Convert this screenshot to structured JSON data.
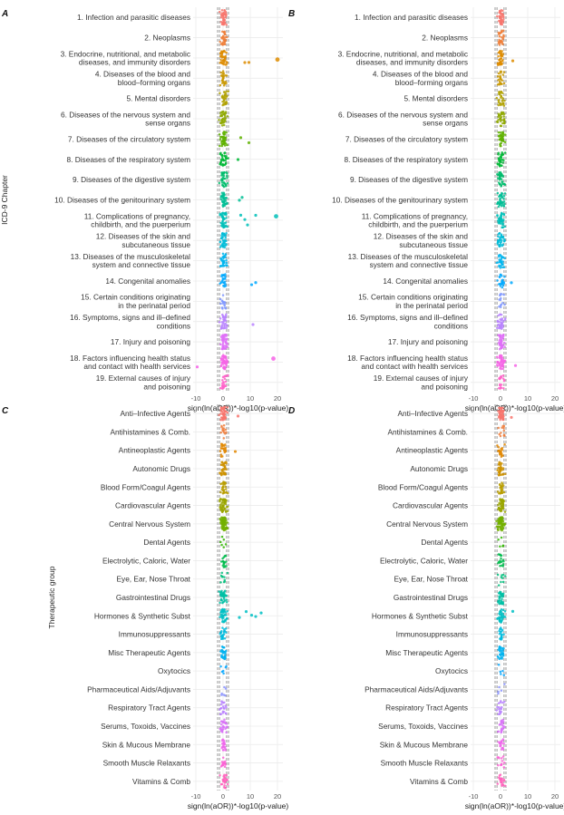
{
  "figure": {
    "xlabel": "sign(ln(aOR))*-log10(p-value)",
    "xticks": [
      -10,
      0,
      10,
      20
    ],
    "xlim": [
      -11,
      22
    ],
    "ref_lines_x": [
      -2,
      -1.3,
      1.3,
      2
    ],
    "rows_ylabel": "ICD-9 Chapter",
    "groups_ylabel": "Therapeutic group",
    "panel_tags": [
      "A",
      "B",
      "C",
      "D"
    ]
  },
  "icd_chapters": [
    [
      "1. Infection and parasitic diseases"
    ],
    [
      "2. Neoplasms"
    ],
    [
      "3. Endocrine, nutritional, and metabolic",
      "diseases, and immunity disorders"
    ],
    [
      "4. Diseases of the blood and",
      "blood–forming organs"
    ],
    [
      "5. Mental disorders"
    ],
    [
      "6. Diseases of the nervous system and",
      "sense organs"
    ],
    [
      "7. Diseases of the circulatory system"
    ],
    [
      "8. Diseases of the respiratory system"
    ],
    [
      "9. Diseases of the digestive system"
    ],
    [
      "10. Diseases of the genitourinary system"
    ],
    [
      "11. Complications of pregnancy,",
      "childbirth, and the puerperium"
    ],
    [
      "12. Diseases of the skin and",
      "subcutaneous tissue"
    ],
    [
      "13. Diseases of the musculoskeletal",
      "system and connective tissue"
    ],
    [
      "14. Congenital anomalies"
    ],
    [
      "15. Certain conditions originating",
      "in the perinatal period"
    ],
    [
      "16. Symptoms, signs and ill–defined",
      "conditions"
    ],
    [
      "17. Injury and poisoning"
    ],
    [
      "18. Factors influencing health status",
      "and contact with health services"
    ],
    [
      "19. External causes of injury",
      "and poisoning"
    ]
  ],
  "therapeutic_groups": [
    "Anti–Infective Agents",
    "Antihistamines & Comb.",
    "Antineoplastic Agents",
    "Autonomic Drugs",
    "Blood Form/Coagul Agents",
    "Cardiovascular Agents",
    "Central Nervous System",
    "Dental Agents",
    "Electrolytic, Caloric, Water",
    "Eye, Ear, Nose Throat",
    "Gastrointestinal Drugs",
    "Hormones & Synthetic Subst",
    "Immunosuppressants",
    "Misc Therapeutic Agents",
    "Oxytocics",
    "Pharmaceutical Aids/Adjuvants",
    "Respiratory Tract Agents",
    "Serums, Toxoids, Vaccines",
    "Skin & Mucous Membrane",
    "Smooth Muscle Relaxants",
    "Vitamins & Comb"
  ],
  "colors": {
    "icd": [
      "#f8766d",
      "#ef7f3a",
      "#de8c00",
      "#c99800",
      "#b0a100",
      "#8fa900",
      "#5fb200",
      "#00b836",
      "#00bc6c",
      "#00be95",
      "#00bfb9",
      "#00bcd8",
      "#00b5ee",
      "#00a9ff",
      "#7f96ff",
      "#b983ff",
      "#df70f8",
      "#f664e6",
      "#ff61c9"
    ],
    "ther": [
      "#f8766d",
      "#f07f3d",
      "#e28700",
      "#ce9200",
      "#b89d00",
      "#9aa600",
      "#73b000",
      "#31b700",
      "#00bc4d",
      "#00bf7d",
      "#00c0a5",
      "#00bfc4",
      "#00bcde",
      "#00b3f0",
      "#00a6ff",
      "#8a93ff",
      "#b983ff",
      "#d974f8",
      "#ef67eb",
      "#fc61d5",
      "#ff62bc"
    ],
    "grid": "#ebebeb",
    "refline": "#7f7f7f"
  },
  "chart_data": [
    {
      "panel": "A",
      "type": "scatter",
      "title": "",
      "xlabel": "sign(ln(aOR))*-log10(p-value)",
      "ylabel": "ICD-9 Chapter",
      "xlim": [
        -11,
        22
      ],
      "rows": "icd_chapters",
      "points_per_row": [
        45,
        32,
        40,
        28,
        30,
        38,
        42,
        35,
        38,
        40,
        45,
        38,
        35,
        25,
        15,
        35,
        50,
        45,
        25
      ],
      "outliers": [
        {
          "row": 2,
          "x": 8.0
        },
        {
          "row": 2,
          "x": 9.5
        },
        {
          "row": 2,
          "x": 20.0
        },
        {
          "row": 6,
          "x": 6.5
        },
        {
          "row": 6,
          "x": 9.5
        },
        {
          "row": 7,
          "x": 5.5
        },
        {
          "row": 9,
          "x": 6.0
        },
        {
          "row": 9,
          "x": 7.0
        },
        {
          "row": 10,
          "x": 6.5
        },
        {
          "row": 10,
          "x": 8.0
        },
        {
          "row": 10,
          "x": 9.0
        },
        {
          "row": 10,
          "x": 12.0
        },
        {
          "row": 10,
          "x": 19.5
        },
        {
          "row": 13,
          "x": 10.5
        },
        {
          "row": 13,
          "x": 12.0
        },
        {
          "row": 15,
          "x": 11.0
        },
        {
          "row": 17,
          "x": -9.5
        },
        {
          "row": 17,
          "x": 18.5
        }
      ]
    },
    {
      "panel": "B",
      "type": "scatter",
      "title": "",
      "xlabel": "sign(ln(aOR))*-log10(p-value)",
      "ylabel": "",
      "xlim": [
        -11,
        22
      ],
      "rows": "icd_chapters",
      "points_per_row": [
        40,
        30,
        38,
        25,
        28,
        35,
        40,
        32,
        35,
        38,
        40,
        35,
        32,
        22,
        14,
        32,
        48,
        42,
        22
      ],
      "outliers": [
        {
          "row": 2,
          "x": 4.5
        },
        {
          "row": 13,
          "x": 4.0
        },
        {
          "row": 17,
          "x": 5.5
        }
      ]
    },
    {
      "panel": "C",
      "type": "scatter",
      "title": "",
      "xlabel": "sign(ln(aOR))*-log10(p-value)",
      "ylabel": "Therapeutic group",
      "xlim": [
        -11,
        22
      ],
      "rows": "therapeutic_groups",
      "points_per_row": [
        50,
        14,
        22,
        40,
        28,
        50,
        70,
        6,
        20,
        10,
        40,
        40,
        22,
        30,
        6,
        6,
        20,
        30,
        20,
        15,
        25
      ],
      "outliers": [
        {
          "row": 0,
          "x": 5.5
        },
        {
          "row": 2,
          "x": 4.5
        },
        {
          "row": 11,
          "x": 6.0
        },
        {
          "row": 11,
          "x": 8.5
        },
        {
          "row": 11,
          "x": 10.5
        },
        {
          "row": 11,
          "x": 12.0
        },
        {
          "row": 11,
          "x": 14.0
        }
      ]
    },
    {
      "panel": "D",
      "type": "scatter",
      "title": "",
      "xlabel": "sign(ln(aOR))*-log10(p-value)",
      "ylabel": "",
      "xlim": [
        -11,
        22
      ],
      "rows": "therapeutic_groups",
      "points_per_row": [
        45,
        12,
        20,
        36,
        25,
        45,
        65,
        5,
        18,
        9,
        35,
        36,
        20,
        28,
        5,
        5,
        18,
        28,
        18,
        13,
        22
      ],
      "outliers": [
        {
          "row": 0,
          "x": 4.0
        },
        {
          "row": 11,
          "x": 4.5
        }
      ]
    }
  ]
}
